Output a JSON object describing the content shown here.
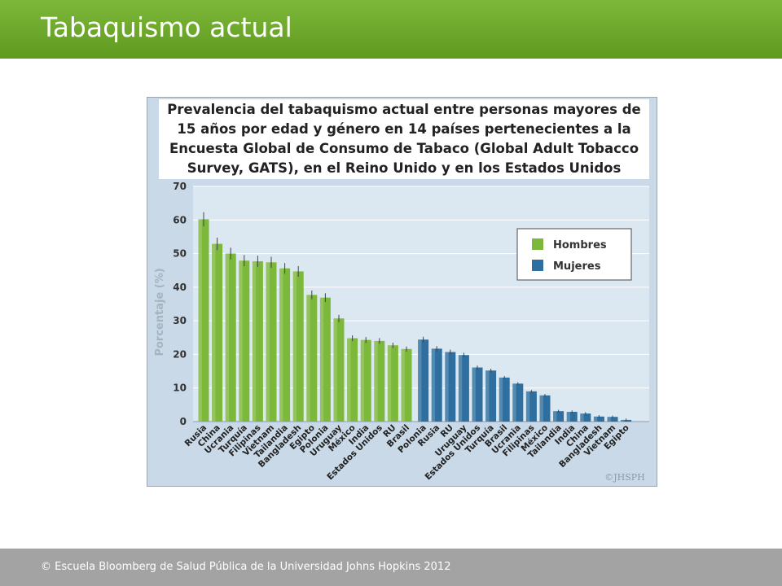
{
  "header": {
    "title": "Tabaquismo actual"
  },
  "footer": {
    "text": "© Escuela Bloomberg de Salud Pública de la Universidad Johns Hopkins 2012"
  },
  "watermark": "©JHSPH",
  "colors": {
    "header": "#6aaa2a",
    "men": "#7cb83a",
    "women": "#2f6f9f",
    "plot_bg": "#c9d9e7",
    "footer": "#a3a3a3"
  },
  "chart_data": {
    "type": "bar",
    "title": "Prevalencia del tabaquismo actual entre personas mayores de 15 años por edad y género en 14 países pertenecientes a la Encuesta Global de Consumo de Tabaco (Global Adult Tobacco Survey, GATS), en el Reino Unido y en los Estados Unidos",
    "ylabel": "Porcentaje (%)",
    "ylim": [
      0,
      70
    ],
    "yticks": [
      0,
      10,
      20,
      30,
      40,
      50,
      60,
      70
    ],
    "grid": true,
    "legend_position": "top-right",
    "error_bars": true,
    "series": [
      {
        "name": "Hombres",
        "color": "#7cb83a",
        "categories": [
          "Rusia",
          "China",
          "Ucrania",
          "Turquía",
          "Filipinas",
          "Vietnam",
          "Tailandia",
          "Bangladesh",
          "Egipto",
          "Polonia",
          "Uruguay",
          "México",
          "India",
          "Estados Unidos",
          "RU",
          "Brasil"
        ],
        "values": [
          60.2,
          52.9,
          50.0,
          47.9,
          47.7,
          47.4,
          45.6,
          44.7,
          37.7,
          36.9,
          30.7,
          24.8,
          24.3,
          24.0,
          22.7,
          21.6
        ]
      },
      {
        "name": "Mujeres",
        "color": "#2f6f9f",
        "categories": [
          "Polonia",
          "Rusia",
          "RU",
          "Uruguay",
          "Estados Unidos",
          "Turquía",
          "Brasil",
          "Ucrania",
          "Filipinas",
          "México",
          "Tailandia",
          "India",
          "China",
          "Bangladesh",
          "Vietnam",
          "Egipto"
        ],
        "values": [
          24.4,
          21.7,
          20.7,
          19.8,
          16.1,
          15.2,
          13.1,
          11.3,
          9.0,
          7.8,
          3.1,
          2.9,
          2.4,
          1.5,
          1.4,
          0.5
        ]
      }
    ]
  }
}
